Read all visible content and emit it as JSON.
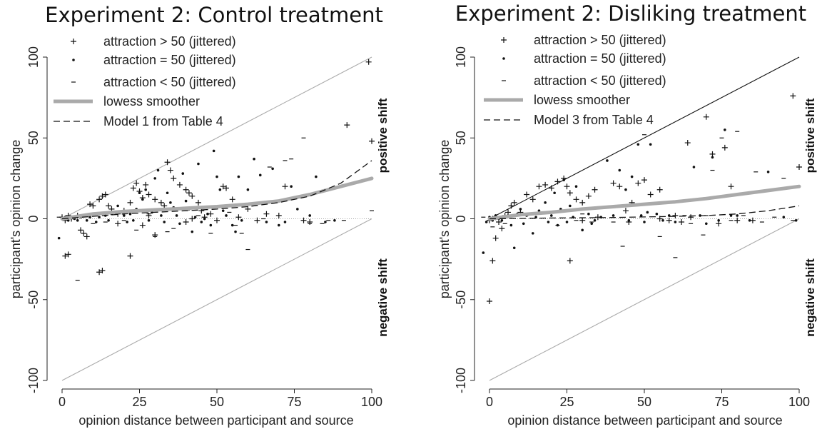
{
  "chart_data": [
    {
      "type": "scatter",
      "title": "Experiment 2: Control treatment",
      "xlabel": "opinion distance between participant and source",
      "ylabel": "participant's opinion change",
      "xlim": [
        0,
        100
      ],
      "ylim": [
        -100,
        100
      ],
      "xticks": [
        "0",
        "25",
        "50",
        "75",
        "100"
      ],
      "yticks": [
        "-100",
        "-50",
        "0",
        "50",
        "100"
      ],
      "positive_label": "positive shift",
      "negative_label": "negative shift",
      "legend": [
        {
          "label": "attraction > 50 (jittered)",
          "symbol": "plus"
        },
        {
          "label": "attraction = 50 (jittered)",
          "symbol": "dot"
        },
        {
          "label": "attraction < 50 (jittered)",
          "symbol": "dash"
        },
        {
          "label": "lowess smoother",
          "symbol": "thick-gray"
        },
        {
          "label": "Model 1 from Table 4",
          "symbol": "dashed"
        }
      ],
      "bounds": {
        "upper": [
          [
            0,
            0
          ],
          [
            100,
            100
          ]
        ],
        "lower": [
          [
            0,
            -100
          ],
          [
            100,
            0
          ]
        ],
        "upper_color": "#aaaaaa"
      },
      "lowess": [
        [
          0,
          0
        ],
        [
          10,
          3
        ],
        [
          20,
          4.5
        ],
        [
          30,
          5.5
        ],
        [
          40,
          6.5
        ],
        [
          50,
          7.5
        ],
        [
          60,
          9
        ],
        [
          70,
          11
        ],
        [
          80,
          15
        ],
        [
          90,
          20
        ],
        [
          100,
          25
        ]
      ],
      "model": [
        [
          0,
          0
        ],
        [
          10,
          1.5
        ],
        [
          20,
          3
        ],
        [
          30,
          4
        ],
        [
          40,
          5
        ],
        [
          50,
          6
        ],
        [
          60,
          7.5
        ],
        [
          70,
          10
        ],
        [
          80,
          14
        ],
        [
          90,
          22
        ],
        [
          100,
          36
        ]
      ],
      "plus": [
        [
          0,
          1
        ],
        [
          1,
          -1
        ],
        [
          2,
          2
        ],
        [
          3,
          0
        ],
        [
          1,
          -23
        ],
        [
          2,
          -22
        ],
        [
          12,
          -33
        ],
        [
          13,
          -32
        ],
        [
          8,
          -11
        ],
        [
          7,
          -9
        ],
        [
          6,
          -7
        ],
        [
          5,
          2
        ],
        [
          9,
          9
        ],
        [
          10,
          8
        ],
        [
          12,
          12
        ],
        [
          13,
          14
        ],
        [
          14,
          15
        ],
        [
          15,
          8
        ],
        [
          16,
          6
        ],
        [
          18,
          3
        ],
        [
          20,
          5
        ],
        [
          22,
          10
        ],
        [
          23,
          19
        ],
        [
          24,
          22
        ],
        [
          25,
          17
        ],
        [
          26,
          13
        ],
        [
          27,
          21
        ],
        [
          28,
          15
        ],
        [
          30,
          12
        ],
        [
          32,
          10
        ],
        [
          33,
          8
        ],
        [
          34,
          35
        ],
        [
          35,
          30
        ],
        [
          36,
          25
        ],
        [
          38,
          21
        ],
        [
          40,
          18
        ],
        [
          41,
          16
        ],
        [
          42,
          14
        ],
        [
          44,
          10
        ],
        [
          45,
          5
        ],
        [
          48,
          3
        ],
        [
          52,
          20
        ],
        [
          53,
          19
        ],
        [
          55,
          12
        ],
        [
          60,
          6
        ],
        [
          66,
          3
        ],
        [
          70,
          2
        ],
        [
          72,
          20
        ],
        [
          78,
          -1
        ],
        [
          80,
          -2
        ],
        [
          92,
          58
        ],
        [
          99,
          97
        ],
        [
          100,
          48
        ],
        [
          22,
          -23
        ],
        [
          30,
          -10
        ],
        [
          28,
          2
        ],
        [
          42,
          0
        ],
        [
          50,
          -1
        ],
        [
          18,
          -3
        ],
        [
          26,
          -4
        ],
        [
          40,
          -2
        ],
        [
          46,
          1
        ],
        [
          57,
          1
        ],
        [
          63,
          -1
        ]
      ],
      "dot": [
        [
          0,
          0
        ],
        [
          1,
          1
        ],
        [
          2,
          -1
        ],
        [
          3,
          1
        ],
        [
          4,
          0
        ],
        [
          5,
          -1
        ],
        [
          -1,
          -12
        ],
        [
          6,
          1
        ],
        [
          7,
          2
        ],
        [
          8,
          -1
        ],
        [
          9,
          1
        ],
        [
          10,
          3
        ],
        [
          11,
          -2
        ],
        [
          12,
          1
        ],
        [
          14,
          2
        ],
        [
          15,
          -1
        ],
        [
          16,
          3
        ],
        [
          18,
          8
        ],
        [
          20,
          2
        ],
        [
          21,
          -2
        ],
        [
          22,
          3
        ],
        [
          23,
          -1
        ],
        [
          24,
          6
        ],
        [
          25,
          16
        ],
        [
          26,
          12
        ],
        [
          27,
          18
        ],
        [
          28,
          -1
        ],
        [
          29,
          4
        ],
        [
          30,
          25
        ],
        [
          31,
          30
        ],
        [
          32,
          2
        ],
        [
          33,
          -2
        ],
        [
          34,
          16
        ],
        [
          35,
          10
        ],
        [
          36,
          7
        ],
        [
          37,
          2
        ],
        [
          38,
          -3
        ],
        [
          39,
          28
        ],
        [
          40,
          11
        ],
        [
          41,
          6
        ],
        [
          42,
          -8
        ],
        [
          43,
          1
        ],
        [
          44,
          34
        ],
        [
          45,
          -2
        ],
        [
          46,
          0
        ],
        [
          47,
          3
        ],
        [
          48,
          -4
        ],
        [
          49,
          42
        ],
        [
          50,
          26
        ],
        [
          51,
          18
        ],
        [
          52,
          5
        ],
        [
          53,
          2
        ],
        [
          55,
          -4
        ],
        [
          56,
          -8
        ],
        [
          57,
          26
        ],
        [
          58,
          -1
        ],
        [
          60,
          18
        ],
        [
          62,
          37
        ],
        [
          64,
          27
        ],
        [
          66,
          -2
        ],
        [
          68,
          31
        ],
        [
          70,
          -4
        ],
        [
          72,
          -2
        ],
        [
          74,
          20
        ],
        [
          76,
          6
        ],
        [
          80,
          2
        ],
        [
          82,
          26
        ],
        [
          85,
          -2
        ],
        [
          88,
          -1
        ]
      ],
      "dash": [
        [
          -1,
          1
        ],
        [
          5,
          -38
        ],
        [
          10,
          -3
        ],
        [
          14,
          -2
        ],
        [
          20,
          -1
        ],
        [
          24,
          -7
        ],
        [
          28,
          3
        ],
        [
          30,
          -11
        ],
        [
          34,
          -8
        ],
        [
          36,
          -6
        ],
        [
          44,
          2
        ],
        [
          48,
          -9
        ],
        [
          54,
          4
        ],
        [
          56,
          -4
        ],
        [
          58,
          -9
        ],
        [
          60,
          -19
        ],
        [
          65,
          0
        ],
        [
          67,
          32
        ],
        [
          72,
          36
        ],
        [
          74,
          37
        ],
        [
          78,
          50
        ],
        [
          80,
          -3
        ],
        [
          84,
          -3
        ],
        [
          86,
          -1
        ],
        [
          91,
          -1
        ],
        [
          100,
          5
        ]
      ]
    },
    {
      "type": "scatter",
      "title": "Experiment 2: Disliking treatment",
      "xlabel": "opinion distance between participant and source",
      "ylabel": "participant's opinion change",
      "xlim": [
        0,
        100
      ],
      "ylim": [
        -100,
        100
      ],
      "xticks": [
        "0",
        "25",
        "50",
        "75",
        "100"
      ],
      "yticks": [
        "-100",
        "-50",
        "0",
        "50",
        "100"
      ],
      "positive_label": "positive shift",
      "negative_label": "negative shift",
      "legend": [
        {
          "label": "attraction > 50 (jittered)",
          "symbol": "plus"
        },
        {
          "label": "attraction = 50 (jittered)",
          "symbol": "dot"
        },
        {
          "label": "attraction < 50 (jittered)",
          "symbol": "dash"
        },
        {
          "label": "lowess smoother",
          "symbol": "thick-gray"
        },
        {
          "label": "Model 3 from Table 4",
          "symbol": "dashed"
        }
      ],
      "bounds": {
        "upper": [
          [
            0,
            0
          ],
          [
            100,
            100
          ]
        ],
        "lower": [
          [
            0,
            -100
          ],
          [
            100,
            0
          ]
        ],
        "upper_color": "#111111"
      },
      "lowess": [
        [
          0,
          0
        ],
        [
          10,
          2.5
        ],
        [
          20,
          4
        ],
        [
          30,
          6
        ],
        [
          40,
          7.5
        ],
        [
          50,
          9
        ],
        [
          60,
          10.5
        ],
        [
          70,
          12.5
        ],
        [
          80,
          15
        ],
        [
          90,
          17.5
        ],
        [
          100,
          20
        ]
      ],
      "model": [
        [
          0,
          0
        ],
        [
          20,
          0.5
        ],
        [
          40,
          0.8
        ],
        [
          60,
          1.5
        ],
        [
          70,
          2
        ],
        [
          80,
          3
        ],
        [
          90,
          5
        ],
        [
          100,
          8
        ]
      ],
      "plus": [
        [
          0,
          -1
        ],
        [
          1,
          0
        ],
        [
          2,
          1
        ],
        [
          3,
          -2
        ],
        [
          1,
          -26
        ],
        [
          0,
          -51
        ],
        [
          2,
          -12
        ],
        [
          4,
          -6
        ],
        [
          5,
          2
        ],
        [
          6,
          4
        ],
        [
          7,
          8
        ],
        [
          8,
          10
        ],
        [
          10,
          4
        ],
        [
          12,
          15
        ],
        [
          14,
          12
        ],
        [
          16,
          20
        ],
        [
          18,
          21
        ],
        [
          20,
          19
        ],
        [
          22,
          23
        ],
        [
          24,
          25
        ],
        [
          25,
          20
        ],
        [
          26,
          16
        ],
        [
          28,
          12
        ],
        [
          30,
          10
        ],
        [
          32,
          14
        ],
        [
          34,
          18
        ],
        [
          40,
          22
        ],
        [
          42,
          20
        ],
        [
          44,
          5
        ],
        [
          46,
          10
        ],
        [
          48,
          22
        ],
        [
          50,
          24
        ],
        [
          52,
          15
        ],
        [
          55,
          18
        ],
        [
          58,
          -1
        ],
        [
          60,
          2
        ],
        [
          62,
          -2
        ],
        [
          64,
          47
        ],
        [
          70,
          63
        ],
        [
          72,
          40
        ],
        [
          74,
          -3
        ],
        [
          76,
          44
        ],
        [
          78,
          20
        ],
        [
          80,
          -1
        ],
        [
          98,
          76
        ],
        [
          100,
          32
        ],
        [
          26,
          -26
        ],
        [
          30,
          -1
        ],
        [
          35,
          1
        ],
        [
          45,
          -2
        ],
        [
          55,
          0
        ],
        [
          65,
          1
        ],
        [
          85,
          -1
        ]
      ],
      "dot": [
        [
          -2,
          -21
        ],
        [
          -1,
          -2
        ],
        [
          0,
          1
        ],
        [
          1,
          -1
        ],
        [
          2,
          2
        ],
        [
          3,
          0
        ],
        [
          4,
          -1
        ],
        [
          5,
          1
        ],
        [
          6,
          2
        ],
        [
          7,
          -4
        ],
        [
          8,
          -18
        ],
        [
          9,
          3
        ],
        [
          10,
          6
        ],
        [
          11,
          -3
        ],
        [
          12,
          2
        ],
        [
          14,
          -9
        ],
        [
          15,
          1
        ],
        [
          16,
          5
        ],
        [
          18,
          10
        ],
        [
          19,
          -2
        ],
        [
          20,
          2
        ],
        [
          21,
          16
        ],
        [
          22,
          -4
        ],
        [
          23,
          6
        ],
        [
          24,
          24
        ],
        [
          25,
          -2
        ],
        [
          26,
          8
        ],
        [
          27,
          1
        ],
        [
          28,
          20
        ],
        [
          30,
          -7
        ],
        [
          32,
          3
        ],
        [
          33,
          -3
        ],
        [
          34,
          -1
        ],
        [
          36,
          1
        ],
        [
          38,
          36
        ],
        [
          40,
          2
        ],
        [
          42,
          30
        ],
        [
          44,
          18
        ],
        [
          45,
          -1
        ],
        [
          46,
          26
        ],
        [
          48,
          46
        ],
        [
          49,
          2
        ],
        [
          50,
          -2
        ],
        [
          51,
          4
        ],
        [
          52,
          46
        ],
        [
          54,
          3
        ],
        [
          56,
          -1
        ],
        [
          58,
          2
        ],
        [
          60,
          -2
        ],
        [
          66,
          32
        ],
        [
          68,
          2
        ],
        [
          70,
          -3
        ],
        [
          72,
          38
        ],
        [
          74,
          -1
        ],
        [
          76,
          55
        ],
        [
          78,
          2
        ],
        [
          80,
          2
        ],
        [
          84,
          -1
        ],
        [
          90,
          29
        ],
        [
          95,
          1
        ],
        [
          99,
          -1
        ]
      ],
      "dash": [
        [
          -2,
          1
        ],
        [
          1,
          -5
        ],
        [
          5,
          -3
        ],
        [
          12,
          2
        ],
        [
          22,
          -4
        ],
        [
          28,
          -1
        ],
        [
          30,
          3
        ],
        [
          33,
          -2
        ],
        [
          40,
          -2
        ],
        [
          43,
          -17
        ],
        [
          50,
          52
        ],
        [
          55,
          -11
        ],
        [
          60,
          -24
        ],
        [
          63,
          2
        ],
        [
          65,
          -3
        ],
        [
          69,
          -10
        ],
        [
          70,
          2
        ],
        [
          72,
          30
        ],
        [
          75,
          50
        ],
        [
          78,
          -1
        ],
        [
          80,
          54
        ],
        [
          82,
          2
        ],
        [
          86,
          29
        ],
        [
          88,
          -2
        ],
        [
          92,
          1
        ],
        [
          95,
          25
        ],
        [
          98,
          -1
        ]
      ]
    }
  ]
}
